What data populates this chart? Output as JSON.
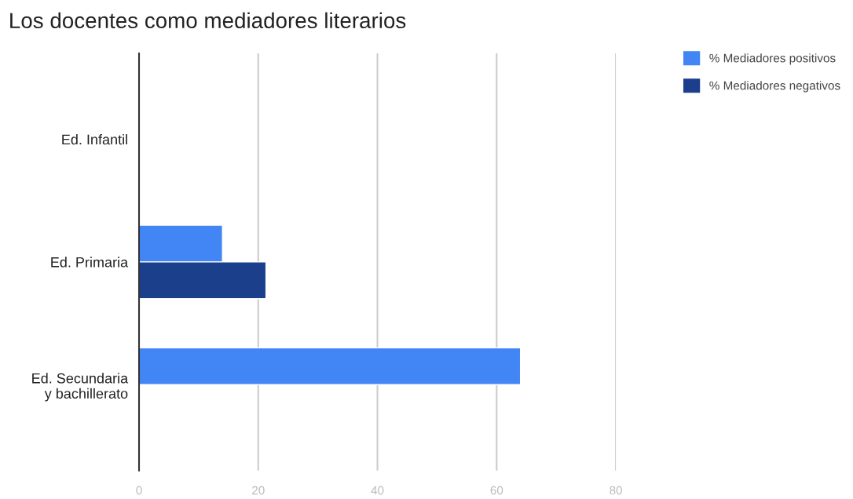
{
  "chart_data": {
    "type": "bar",
    "orientation": "horizontal",
    "title": "Los docentes como mediadores literarios",
    "categories": [
      "Ed. Infantil",
      "Ed. Primaria",
      "Ed. Secundaria\ny bachillerato"
    ],
    "series": [
      {
        "name": "% Mediadores positivos",
        "color": "#4285f4",
        "values": [
          null,
          14,
          64
        ]
      },
      {
        "name": "% Mediadores negativos",
        "color": "#1c3f8c",
        "values": [
          null,
          21.3,
          null
        ]
      }
    ],
    "xlim": [
      0,
      80
    ],
    "xticks": [
      0,
      20,
      40,
      60,
      80
    ],
    "grid": "x",
    "legend": "top right"
  }
}
